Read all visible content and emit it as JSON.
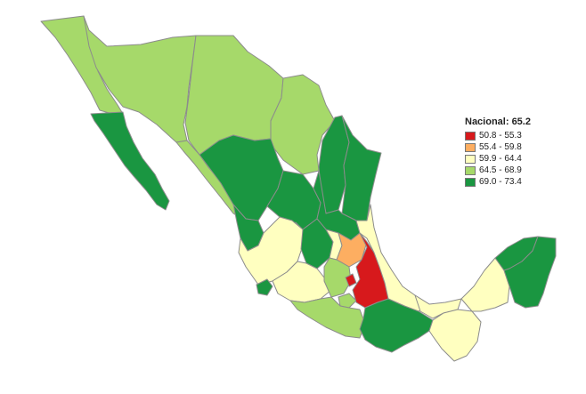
{
  "legend": {
    "title": "Nacional: 65.2",
    "classes": [
      {
        "label": "50.8 - 55.3",
        "color": "#d7191c"
      },
      {
        "label": "55.4 - 59.8",
        "color": "#fdae61"
      },
      {
        "label": "59.9 - 64.4",
        "color": "#ffffc0"
      },
      {
        "label": "64.5 - 68.9",
        "color": "#a6d96a"
      },
      {
        "label": "69.0 - 73.4",
        "color": "#1a9641"
      }
    ]
  },
  "border_color": "#8c8c8c"
}
